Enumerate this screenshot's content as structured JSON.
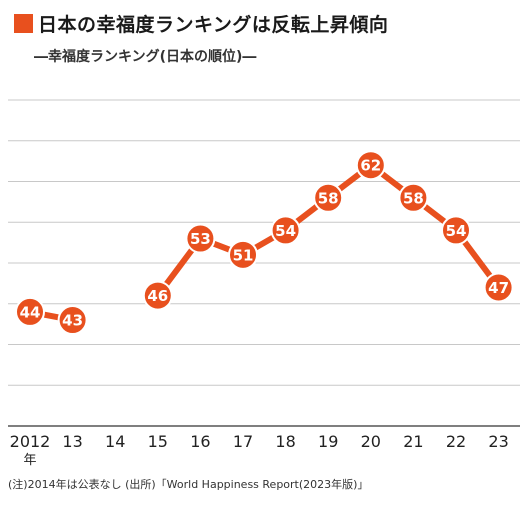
{
  "title": "日本の幸福度ランキングは反転上昇傾向",
  "subtitle": "―幸福度ランキング(日本の順位)―",
  "footnote": "(注)2014年は公表なし (出所)「World Happiness Report(2023年版)」",
  "x_unit": "年",
  "colors": {
    "accent": "#e8501e",
    "grid": "#c8c8c8",
    "axis": "#555555"
  },
  "chart_data": {
    "type": "line",
    "title": "幸福度ランキング(日本の順位)",
    "xlabel": "",
    "ylabel": "",
    "categories": [
      "2012",
      "13",
      "14",
      "15",
      "16",
      "17",
      "18",
      "19",
      "20",
      "21",
      "22",
      "23"
    ],
    "series": [
      {
        "values": [
          44,
          43,
          null,
          46,
          53,
          51,
          54,
          58,
          62,
          58,
          54,
          47
        ]
      }
    ],
    "ylim": [
      30,
      70
    ],
    "grid": true,
    "legend": "none"
  }
}
